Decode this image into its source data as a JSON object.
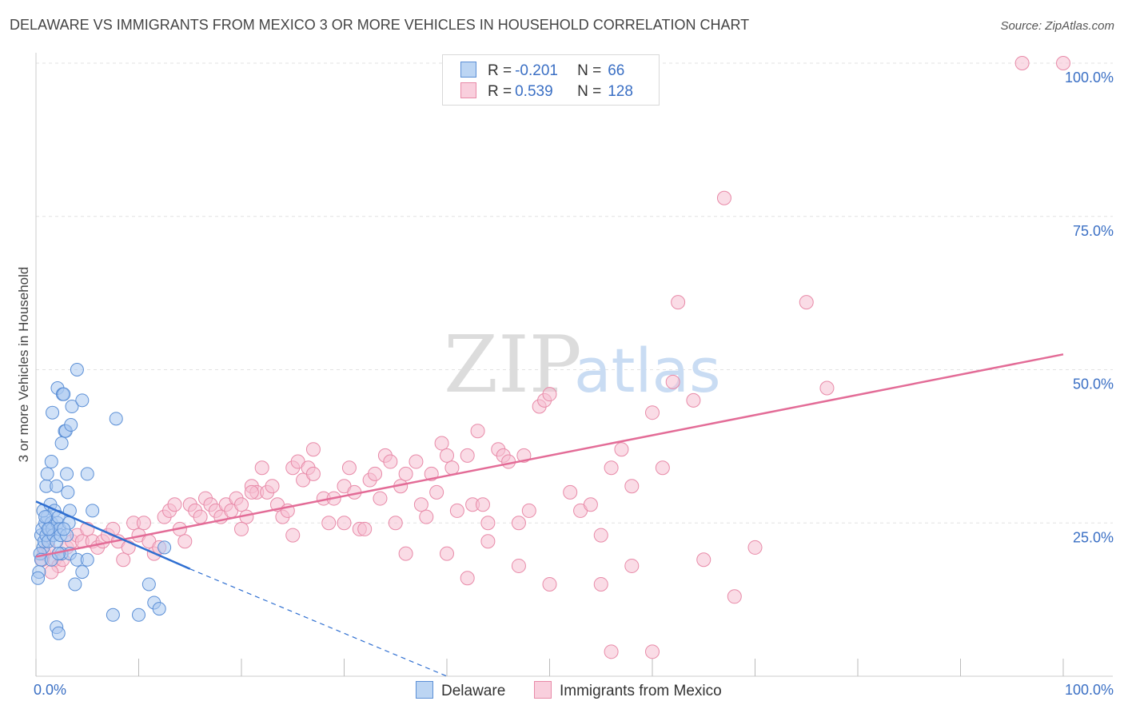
{
  "title": "DELAWARE VS IMMIGRANTS FROM MEXICO 3 OR MORE VEHICLES IN HOUSEHOLD CORRELATION CHART",
  "source": "Source: ZipAtlas.com",
  "watermark": {
    "zip": "ZIP",
    "atlas": "atlas"
  },
  "colors": {
    "blue_fill": "#a9c8f0",
    "blue_stroke": "#5b8fd6",
    "blue_line": "#2f6fd1",
    "pink_fill": "#f6c0d2",
    "pink_stroke": "#e88aa8",
    "pink_line": "#e36c97",
    "axis_text": "#3a6fc4",
    "grid": "#e2e2e2"
  },
  "legend": {
    "r_label": "R =",
    "n_label": "N =",
    "rows": [
      {
        "r": "-0.201",
        "n": "66"
      },
      {
        "r": "0.539",
        "n": "128"
      }
    ]
  },
  "chart_data": {
    "type": "scatter",
    "title": "DELAWARE VS IMMIGRANTS FROM MEXICO 3 OR MORE VEHICLES IN HOUSEHOLD CORRELATION CHART",
    "xlabel": "",
    "ylabel": "3 or more Vehicles in Household",
    "xlim": [
      0,
      100
    ],
    "ylim": [
      0,
      100
    ],
    "x_tick_labels": [
      "0.0%",
      "100.0%"
    ],
    "y_tick_labels": [
      "100.0%",
      "75.0%",
      "50.0%",
      "25.0%"
    ],
    "y_ticks": [
      100,
      75,
      50,
      25
    ],
    "grid": true,
    "legend_position": "top-center",
    "series": [
      {
        "name": "Delaware",
        "color": "#a9c8f0",
        "trend": {
          "x": [
            0,
            15
          ],
          "y": [
            28.5,
            17.5
          ],
          "dashed_to": [
            40,
            0
          ]
        },
        "points": [
          [
            0.5,
            23
          ],
          [
            0.6,
            24
          ],
          [
            0.7,
            21
          ],
          [
            0.8,
            22
          ],
          [
            0.9,
            25
          ],
          [
            1.0,
            23
          ],
          [
            1.1,
            26
          ],
          [
            1.2,
            22
          ],
          [
            1.3,
            24
          ],
          [
            0.4,
            20
          ],
          [
            0.5,
            19
          ],
          [
            0.3,
            17
          ],
          [
            0.7,
            27
          ],
          [
            1.0,
            31
          ],
          [
            1.1,
            33
          ],
          [
            1.4,
            28
          ],
          [
            1.5,
            25
          ],
          [
            1.6,
            24
          ],
          [
            1.7,
            23
          ],
          [
            1.8,
            27
          ],
          [
            2.0,
            22
          ],
          [
            2.1,
            25
          ],
          [
            2.2,
            26
          ],
          [
            2.3,
            24
          ],
          [
            2.4,
            23
          ],
          [
            1.5,
            35
          ],
          [
            1.6,
            43
          ],
          [
            2.1,
            47
          ],
          [
            2.6,
            46
          ],
          [
            2.7,
            46
          ],
          [
            2.8,
            40
          ],
          [
            2.5,
            38
          ],
          [
            2.9,
            40
          ],
          [
            3.5,
            44
          ],
          [
            3.4,
            41
          ],
          [
            2.0,
            31
          ],
          [
            3.0,
            33
          ],
          [
            3.1,
            30
          ],
          [
            3.3,
            27
          ],
          [
            3.2,
            25
          ],
          [
            4.0,
            50
          ],
          [
            4.5,
            45
          ],
          [
            5.0,
            33
          ],
          [
            5.5,
            27
          ],
          [
            3.0,
            23
          ],
          [
            2.5,
            20
          ],
          [
            3.3,
            20
          ],
          [
            4.0,
            19
          ],
          [
            4.5,
            17
          ],
          [
            5.0,
            19
          ],
          [
            3.8,
            15
          ],
          [
            1.5,
            19
          ],
          [
            2.2,
            20
          ],
          [
            12.5,
            21
          ],
          [
            2.0,
            8
          ],
          [
            2.2,
            7
          ],
          [
            7.5,
            10
          ],
          [
            10.0,
            10
          ],
          [
            11.0,
            15
          ],
          [
            11.5,
            12
          ],
          [
            12.0,
            11
          ],
          [
            7.8,
            42
          ],
          [
            1.2,
            24
          ],
          [
            0.9,
            26
          ],
          [
            2.7,
            24
          ],
          [
            0.2,
            16
          ]
        ]
      },
      {
        "name": "Immigrants from Mexico",
        "color": "#f6c0d2",
        "trend": {
          "x": [
            0,
            100
          ],
          "y": [
            19.5,
            52.5
          ]
        },
        "points": [
          [
            0.8,
            20
          ],
          [
            1.2,
            21
          ],
          [
            1.8,
            19
          ],
          [
            2.2,
            18
          ],
          [
            3.0,
            21
          ],
          [
            3.5,
            22
          ],
          [
            4.0,
            23
          ],
          [
            4.5,
            22
          ],
          [
            5.0,
            24
          ],
          [
            5.5,
            22
          ],
          [
            6.0,
            21
          ],
          [
            6.5,
            22
          ],
          [
            7.0,
            23
          ],
          [
            7.5,
            24
          ],
          [
            8.0,
            22
          ],
          [
            8.5,
            19
          ],
          [
            9.0,
            21
          ],
          [
            9.5,
            25
          ],
          [
            10,
            23
          ],
          [
            10.5,
            25
          ],
          [
            11,
            22
          ],
          [
            11.5,
            20
          ],
          [
            12,
            21
          ],
          [
            12.5,
            26
          ],
          [
            13,
            27
          ],
          [
            13.5,
            28
          ],
          [
            14,
            24
          ],
          [
            14.5,
            22
          ],
          [
            15,
            28
          ],
          [
            15.5,
            27
          ],
          [
            16,
            26
          ],
          [
            16.5,
            29
          ],
          [
            17,
            28
          ],
          [
            17.5,
            27
          ],
          [
            18,
            26
          ],
          [
            18.5,
            28
          ],
          [
            19,
            27
          ],
          [
            19.5,
            29
          ],
          [
            20,
            28
          ],
          [
            20.5,
            26
          ],
          [
            21,
            31
          ],
          [
            21.5,
            30
          ],
          [
            22,
            34
          ],
          [
            22.5,
            30
          ],
          [
            23,
            31
          ],
          [
            23.5,
            28
          ],
          [
            24,
            26
          ],
          [
            24.5,
            27
          ],
          [
            25,
            34
          ],
          [
            25.5,
            35
          ],
          [
            26,
            32
          ],
          [
            26.5,
            34
          ],
          [
            27,
            33
          ],
          [
            28,
            29
          ],
          [
            28.5,
            25
          ],
          [
            29,
            29
          ],
          [
            30,
            31
          ],
          [
            30.5,
            34
          ],
          [
            31,
            30
          ],
          [
            31.5,
            24
          ],
          [
            32,
            24
          ],
          [
            32.5,
            32
          ],
          [
            33,
            33
          ],
          [
            33.5,
            29
          ],
          [
            34,
            36
          ],
          [
            34.5,
            35
          ],
          [
            35,
            25
          ],
          [
            35.5,
            31
          ],
          [
            36,
            33
          ],
          [
            37,
            35
          ],
          [
            37.5,
            28
          ],
          [
            38,
            26
          ],
          [
            38.5,
            33
          ],
          [
            39,
            30
          ],
          [
            39.5,
            38
          ],
          [
            40,
            36
          ],
          [
            40.5,
            34
          ],
          [
            41,
            27
          ],
          [
            42,
            36
          ],
          [
            42.5,
            28
          ],
          [
            43,
            40
          ],
          [
            43.5,
            28
          ],
          [
            44,
            25
          ],
          [
            45,
            37
          ],
          [
            45.5,
            36
          ],
          [
            46,
            35
          ],
          [
            47,
            25
          ],
          [
            47.5,
            36
          ],
          [
            48,
            27
          ],
          [
            49,
            44
          ],
          [
            49.5,
            45
          ],
          [
            50,
            46
          ],
          [
            52,
            30
          ],
          [
            53,
            27
          ],
          [
            54,
            28
          ],
          [
            55,
            23
          ],
          [
            56,
            34
          ],
          [
            57,
            37
          ],
          [
            58,
            31
          ],
          [
            60,
            43
          ],
          [
            61,
            34
          ],
          [
            62,
            48
          ],
          [
            62.5,
            61
          ],
          [
            64,
            45
          ],
          [
            65,
            19
          ],
          [
            67,
            78
          ],
          [
            68,
            13
          ],
          [
            70,
            21
          ],
          [
            75,
            61
          ],
          [
            77,
            47
          ],
          [
            96,
            100
          ],
          [
            100,
            100
          ],
          [
            21,
            30
          ],
          [
            27,
            37
          ],
          [
            36,
            20
          ],
          [
            42,
            16
          ],
          [
            44,
            22
          ],
          [
            50,
            15
          ],
          [
            55,
            15
          ],
          [
            58,
            18
          ],
          [
            47,
            18
          ],
          [
            40,
            20
          ],
          [
            30,
            25
          ],
          [
            25,
            23
          ],
          [
            20,
            24
          ],
          [
            60,
            4
          ],
          [
            56,
            4
          ],
          [
            1.5,
            17
          ],
          [
            0.6,
            19
          ],
          [
            2.6,
            19
          ]
        ]
      }
    ]
  }
}
